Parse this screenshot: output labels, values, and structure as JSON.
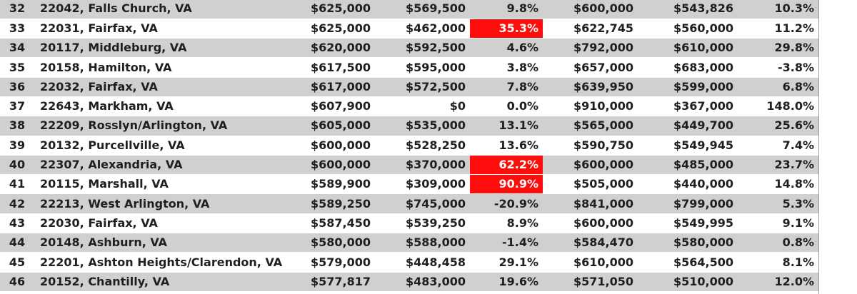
{
  "rows": [
    {
      "n": "32",
      "name": "22042, Falls Church, VA",
      "a": "$625,000",
      "b": "$569,500",
      "c": "9.8%",
      "d": "$600,000",
      "e": "$543,826",
      "f": "10.3%",
      "shaded": true,
      "highlight": false
    },
    {
      "n": "33",
      "name": "22031, Fairfax, VA",
      "a": "$625,000",
      "b": "$462,000",
      "c": "35.3%",
      "d": "$622,745",
      "e": "$560,000",
      "f": "11.2%",
      "shaded": false,
      "highlight": true
    },
    {
      "n": "34",
      "name": "20117, Middleburg, VA",
      "a": "$620,000",
      "b": "$592,500",
      "c": "4.6%",
      "d": "$792,000",
      "e": "$610,000",
      "f": "29.8%",
      "shaded": true,
      "highlight": false
    },
    {
      "n": "35",
      "name": "20158, Hamilton, VA",
      "a": "$617,500",
      "b": "$595,000",
      "c": "3.8%",
      "d": "$657,000",
      "e": "$683,000",
      "f": "-3.8%",
      "shaded": false,
      "highlight": false
    },
    {
      "n": "36",
      "name": "22032, Fairfax, VA",
      "a": "$617,000",
      "b": "$572,500",
      "c": "7.8%",
      "d": "$639,950",
      "e": "$599,000",
      "f": "6.8%",
      "shaded": true,
      "highlight": false
    },
    {
      "n": "37",
      "name": "22643, Markham, VA",
      "a": "$607,900",
      "b": "$0",
      "c": "0.0%",
      "d": "$910,000",
      "e": "$367,000",
      "f": "148.0%",
      "shaded": false,
      "highlight": false
    },
    {
      "n": "38",
      "name": "22209, Rosslyn/Arlington, VA",
      "a": "$605,000",
      "b": "$535,000",
      "c": "13.1%",
      "d": "$565,000",
      "e": "$449,700",
      "f": "25.6%",
      "shaded": true,
      "highlight": false
    },
    {
      "n": "39",
      "name": "20132, Purcellville, VA",
      "a": "$600,000",
      "b": "$528,250",
      "c": "13.6%",
      "d": "$590,750",
      "e": "$549,945",
      "f": "7.4%",
      "shaded": false,
      "highlight": false
    },
    {
      "n": "40",
      "name": "22307, Alexandria, VA",
      "a": "$600,000",
      "b": "$370,000",
      "c": "62.2%",
      "d": "$600,000",
      "e": "$485,000",
      "f": "23.7%",
      "shaded": true,
      "highlight": true
    },
    {
      "n": "41",
      "name": "20115, Marshall, VA",
      "a": "$589,900",
      "b": "$309,000",
      "c": "90.9%",
      "d": "$505,000",
      "e": "$440,000",
      "f": "14.8%",
      "shaded": false,
      "highlight": true
    },
    {
      "n": "42",
      "name": "22213, West Arlington, VA",
      "a": "$589,250",
      "b": "$745,000",
      "c": "-20.9%",
      "d": "$841,000",
      "e": "$799,000",
      "f": "5.3%",
      "shaded": true,
      "highlight": false
    },
    {
      "n": "43",
      "name": "22030, Fairfax, VA",
      "a": "$587,450",
      "b": "$539,250",
      "c": "8.9%",
      "d": "$600,000",
      "e": "$549,995",
      "f": "9.1%",
      "shaded": false,
      "highlight": false
    },
    {
      "n": "44",
      "name": "20148, Ashburn, VA",
      "a": "$580,000",
      "b": "$588,000",
      "c": "-1.4%",
      "d": "$584,470",
      "e": "$580,000",
      "f": "0.8%",
      "shaded": true,
      "highlight": false
    },
    {
      "n": "45",
      "name": "22201, Ashton Heights/Clarendon, VA",
      "a": "$579,000",
      "b": "$448,458",
      "c": "29.1%",
      "d": "$610,000",
      "e": "$564,500",
      "f": "8.1%",
      "shaded": false,
      "highlight": false
    },
    {
      "n": "46",
      "name": "20152, Chantilly, VA",
      "a": "$577,817",
      "b": "$483,000",
      "c": "19.6%",
      "d": "$571,050",
      "e": "$510,000",
      "f": "12.0%",
      "shaded": true,
      "highlight": false
    }
  ],
  "colors": {
    "row_shade": "#d0d0d0",
    "highlight": "#ff0d0d",
    "highlight_text": "#ffffff",
    "text": "#1f1f1f"
  }
}
